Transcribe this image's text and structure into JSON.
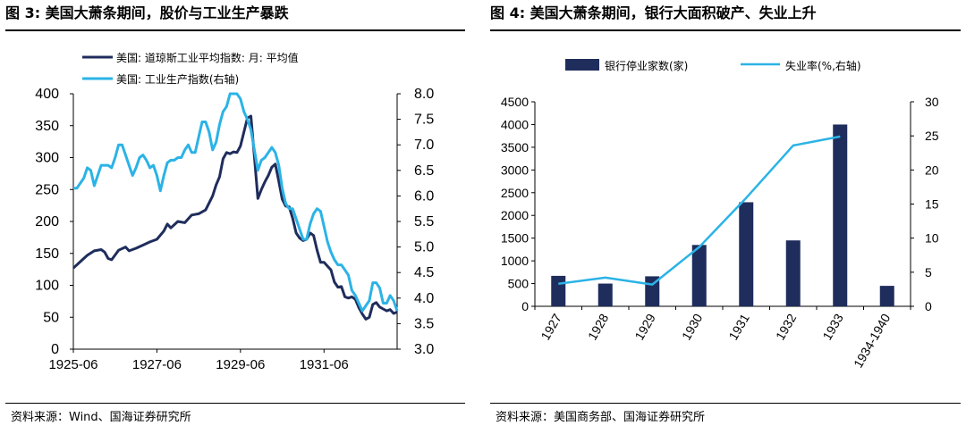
{
  "figures": {
    "left": {
      "title": "图 3:  美国大萧条期间，股价与工业生产暴跌",
      "source": "资料来源：Wind、国海证券研究所"
    },
    "right": {
      "title": "图 4:  美国大萧条期间，银行大面积破产、失业上升",
      "source": "资料来源：美国商务部、国海证券研究所"
    }
  },
  "chart_data": [
    {
      "type": "line",
      "title": "",
      "x_ticks": [
        "1925-06",
        "1927-06",
        "1929-06",
        "1931-06"
      ],
      "x_range": [
        "1925-06",
        "1933-03"
      ],
      "y_left": {
        "lim": [
          0,
          400
        ],
        "ticks": [
          "0",
          "50",
          "100",
          "150",
          "200",
          "250",
          "300",
          "350",
          "400"
        ]
      },
      "y_right": {
        "lim": [
          3.0,
          8.0
        ],
        "ticks": [
          "3.0",
          "3.5",
          "4.0",
          "4.5",
          "5.0",
          "5.5",
          "6.0",
          "6.5",
          "7.0",
          "7.5",
          "8.0"
        ]
      },
      "legend_position": "top-left",
      "series": [
        {
          "name": "美国: 道琼斯工业平均指数: 月: 平均值",
          "axis": "left",
          "color": "#1f2d5c",
          "points": [
            [
              "1925-06",
              127
            ],
            [
              "1925-08",
              137
            ],
            [
              "1925-10",
              147
            ],
            [
              "1925-12",
              154
            ],
            [
              "1926-02",
              156
            ],
            [
              "1926-03",
              152
            ],
            [
              "1926-04",
              142
            ],
            [
              "1926-05",
              140
            ],
            [
              "1926-07",
              155
            ],
            [
              "1926-09",
              160
            ],
            [
              "1926-10",
              154
            ],
            [
              "1926-12",
              158
            ],
            [
              "1927-02",
              163
            ],
            [
              "1927-04",
              168
            ],
            [
              "1927-06",
              172
            ],
            [
              "1927-08",
              185
            ],
            [
              "1927-09",
              196
            ],
            [
              "1927-10",
              190
            ],
            [
              "1927-12",
              200
            ],
            [
              "1928-02",
              198
            ],
            [
              "1928-04",
              210
            ],
            [
              "1928-06",
              212
            ],
            [
              "1928-08",
              218
            ],
            [
              "1928-10",
              240
            ],
            [
              "1928-11",
              257
            ],
            [
              "1928-12",
              270
            ],
            [
              "1929-01",
              298
            ],
            [
              "1929-02",
              308
            ],
            [
              "1929-03",
              306
            ],
            [
              "1929-04",
              309
            ],
            [
              "1929-05",
              308
            ],
            [
              "1929-06",
              318
            ],
            [
              "1929-07",
              340
            ],
            [
              "1929-08",
              362
            ],
            [
              "1929-09",
              365
            ],
            [
              "1929-10",
              302
            ],
            [
              "1929-11",
              236
            ],
            [
              "1929-12",
              250
            ],
            [
              "1930-01",
              262
            ],
            [
              "1930-02",
              272
            ],
            [
              "1930-03",
              285
            ],
            [
              "1930-04",
              290
            ],
            [
              "1930-05",
              263
            ],
            [
              "1930-06",
              235
            ],
            [
              "1930-07",
              224
            ],
            [
              "1930-08",
              223
            ],
            [
              "1930-09",
              205
            ],
            [
              "1930-10",
              182
            ],
            [
              "1930-11",
              174
            ],
            [
              "1930-12",
              170
            ],
            [
              "1931-01",
              172
            ],
            [
              "1931-02",
              182
            ],
            [
              "1931-03",
              178
            ],
            [
              "1931-04",
              155
            ],
            [
              "1931-05",
              136
            ],
            [
              "1931-06",
              136
            ],
            [
              "1931-07",
              130
            ],
            [
              "1931-08",
              124
            ],
            [
              "1931-09",
              105
            ],
            [
              "1931-10",
              97
            ],
            [
              "1931-11",
              98
            ],
            [
              "1931-12",
              82
            ],
            [
              "1932-01",
              80
            ],
            [
              "1932-02",
              82
            ],
            [
              "1932-03",
              78
            ],
            [
              "1932-04",
              65
            ],
            [
              "1932-05",
              55
            ],
            [
              "1932-06",
              47
            ],
            [
              "1932-07",
              50
            ],
            [
              "1932-08",
              70
            ],
            [
              "1932-09",
              73
            ],
            [
              "1932-10",
              66
            ],
            [
              "1932-11",
              63
            ],
            [
              "1932-12",
              60
            ],
            [
              "1933-01",
              62
            ],
            [
              "1933-02",
              56
            ],
            [
              "1933-03",
              58
            ]
          ]
        },
        {
          "name": "美国: 工业生产指数(右轴)",
          "axis": "right",
          "color": "#2bb3e6",
          "points": [
            [
              "1925-06",
              6.15
            ],
            [
              "1925-07",
              6.15
            ],
            [
              "1925-08",
              6.25
            ],
            [
              "1925-09",
              6.35
            ],
            [
              "1925-10",
              6.55
            ],
            [
              "1925-11",
              6.5
            ],
            [
              "1925-12",
              6.2
            ],
            [
              "1926-02",
              6.6
            ],
            [
              "1926-04",
              6.6
            ],
            [
              "1926-05",
              6.55
            ],
            [
              "1926-06",
              6.75
            ],
            [
              "1926-07",
              7.0
            ],
            [
              "1926-08",
              7.0
            ],
            [
              "1926-09",
              6.8
            ],
            [
              "1926-10",
              6.6
            ],
            [
              "1926-11",
              6.4
            ],
            [
              "1926-12",
              6.55
            ],
            [
              "1927-01",
              6.75
            ],
            [
              "1927-02",
              6.8
            ],
            [
              "1927-03",
              6.7
            ],
            [
              "1927-04",
              6.55
            ],
            [
              "1927-05",
              6.6
            ],
            [
              "1927-06",
              6.4
            ],
            [
              "1927-07",
              6.1
            ],
            [
              "1927-08",
              6.4
            ],
            [
              "1927-09",
              6.65
            ],
            [
              "1927-10",
              6.7
            ],
            [
              "1927-11",
              6.7
            ],
            [
              "1927-12",
              6.75
            ],
            [
              "1928-01",
              6.75
            ],
            [
              "1928-02",
              6.9
            ],
            [
              "1928-03",
              7.0
            ],
            [
              "1928-04",
              6.85
            ],
            [
              "1928-05",
              6.85
            ],
            [
              "1928-06",
              7.15
            ],
            [
              "1928-07",
              7.45
            ],
            [
              "1928-08",
              7.45
            ],
            [
              "1928-09",
              7.25
            ],
            [
              "1928-10",
              6.9
            ],
            [
              "1928-11",
              7.05
            ],
            [
              "1928-12",
              7.4
            ],
            [
              "1929-01",
              7.65
            ],
            [
              "1929-02",
              7.75
            ],
            [
              "1929-03",
              8.0
            ],
            [
              "1929-04",
              8.0
            ],
            [
              "1929-05",
              8.0
            ],
            [
              "1929-06",
              7.9
            ],
            [
              "1929-07",
              7.65
            ],
            [
              "1929-08",
              7.5
            ],
            [
              "1929-09",
              7.3
            ],
            [
              "1929-10",
              6.9
            ],
            [
              "1929-11",
              6.5
            ],
            [
              "1929-12",
              6.7
            ],
            [
              "1930-01",
              6.75
            ],
            [
              "1930-02",
              6.85
            ],
            [
              "1930-03",
              6.95
            ],
            [
              "1930-04",
              6.85
            ],
            [
              "1930-05",
              6.6
            ],
            [
              "1930-06",
              6.15
            ],
            [
              "1930-07",
              5.85
            ],
            [
              "1930-08",
              5.75
            ],
            [
              "1930-09",
              5.75
            ],
            [
              "1930-10",
              5.55
            ],
            [
              "1930-11",
              5.35
            ],
            [
              "1930-12",
              5.15
            ],
            [
              "1931-01",
              5.15
            ],
            [
              "1931-02",
              5.45
            ],
            [
              "1931-03",
              5.65
            ],
            [
              "1931-04",
              5.75
            ],
            [
              "1931-05",
              5.7
            ],
            [
              "1931-06",
              5.4
            ],
            [
              "1931-07",
              5.1
            ],
            [
              "1931-08",
              4.9
            ],
            [
              "1931-09",
              4.75
            ],
            [
              "1931-10",
              4.65
            ],
            [
              "1931-11",
              4.65
            ],
            [
              "1931-12",
              4.55
            ],
            [
              "1932-01",
              4.45
            ],
            [
              "1932-02",
              4.15
            ],
            [
              "1932-03",
              4.05
            ],
            [
              "1932-04",
              3.9
            ],
            [
              "1932-05",
              3.75
            ],
            [
              "1932-06",
              3.85
            ],
            [
              "1932-07",
              3.95
            ],
            [
              "1932-08",
              4.3
            ],
            [
              "1932-09",
              4.3
            ],
            [
              "1932-10",
              4.2
            ],
            [
              "1932-11",
              3.9
            ],
            [
              "1932-12",
              3.9
            ],
            [
              "1933-01",
              4.05
            ],
            [
              "1933-02",
              3.95
            ],
            [
              "1933-03",
              3.75
            ]
          ]
        }
      ]
    },
    {
      "type": "bar",
      "title": "",
      "categories": [
        "1927",
        "1928",
        "1929",
        "1930",
        "1931",
        "1932",
        "1933",
        "1934-1940"
      ],
      "y_left": {
        "lim": [
          0,
          4500
        ],
        "ticks": [
          "0",
          "500",
          "1000",
          "1500",
          "2000",
          "2500",
          "3000",
          "3500",
          "4000",
          "4500"
        ]
      },
      "y_right": {
        "lim": [
          0,
          30
        ],
        "ticks": [
          "0",
          "5",
          "10",
          "15",
          "20",
          "25",
          "30"
        ]
      },
      "legend_position": "top",
      "series": [
        {
          "name": "银行停业家数(家)",
          "type": "bar",
          "axis": "left",
          "color": "#1f2d5c",
          "values": [
            670,
            500,
            660,
            1350,
            2290,
            1450,
            4000,
            450
          ]
        },
        {
          "name": "失业率(%,右轴)",
          "type": "line",
          "axis": "right",
          "color": "#2bb3e6",
          "values": [
            3.3,
            4.2,
            3.2,
            8.7,
            15.9,
            23.6,
            24.9,
            null
          ]
        }
      ]
    }
  ]
}
